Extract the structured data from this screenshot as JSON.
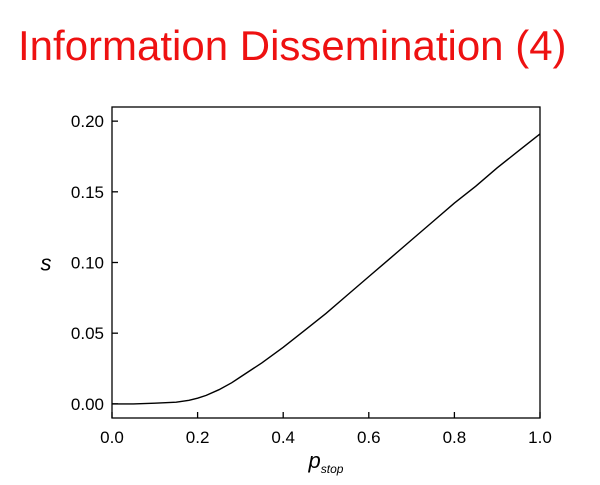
{
  "slide": {
    "title": "Information Dissemination (4)",
    "title_color": "#ee1111"
  },
  "chart_data": {
    "type": "line",
    "title": "",
    "xlabel": "p",
    "xlabel_subscript": "stop",
    "ylabel": "s",
    "xlim": [
      0.0,
      1.0
    ],
    "ylim": [
      -0.01,
      0.21
    ],
    "xticks": [
      0.0,
      0.2,
      0.4,
      0.6,
      0.8,
      1.0
    ],
    "xtick_labels": [
      "0.0",
      "0.2",
      "0.4",
      "0.6",
      "0.8",
      "1.0"
    ],
    "yticks": [
      0.0,
      0.05,
      0.1,
      0.15,
      0.2
    ],
    "ytick_labels": [
      "0.00",
      "0.05",
      "0.10",
      "0.15",
      "0.20"
    ],
    "grid": false,
    "legend": "none",
    "line_color": "#000000",
    "series": [
      {
        "x": [
          0.0,
          0.05,
          0.1,
          0.15,
          0.18,
          0.2,
          0.22,
          0.25,
          0.28,
          0.3,
          0.35,
          0.4,
          0.45,
          0.5,
          0.55,
          0.6,
          0.65,
          0.7,
          0.75,
          0.8,
          0.85,
          0.9,
          0.95,
          1.0
        ],
        "values": [
          0.0,
          0.0,
          0.0005,
          0.0012,
          0.0025,
          0.004,
          0.006,
          0.01,
          0.015,
          0.019,
          0.029,
          0.04,
          0.052,
          0.064,
          0.077,
          0.09,
          0.103,
          0.116,
          0.129,
          0.142,
          0.154,
          0.167,
          0.179,
          0.191
        ]
      }
    ]
  }
}
